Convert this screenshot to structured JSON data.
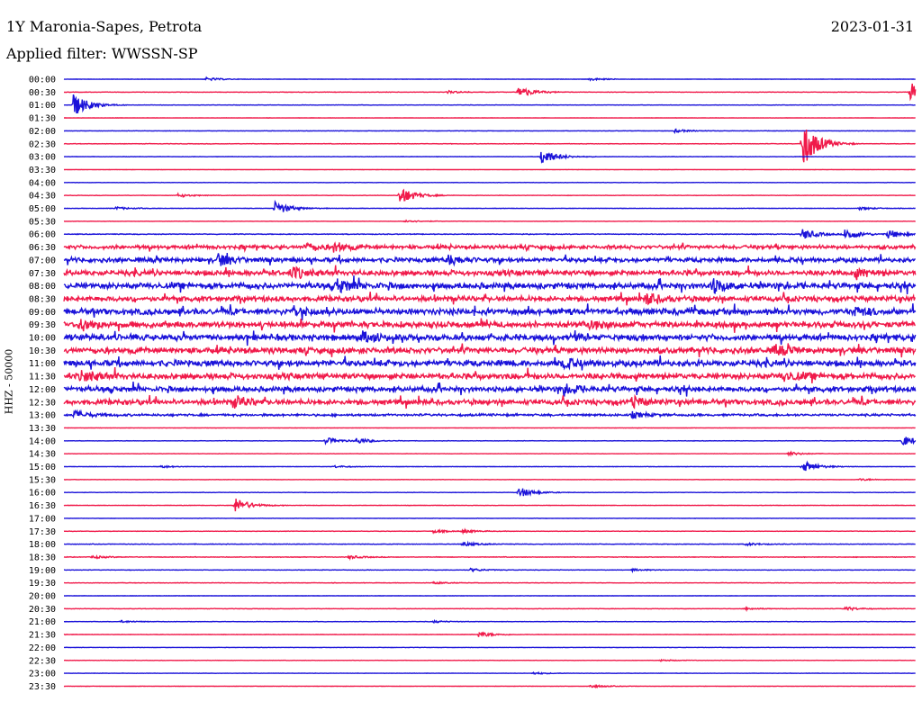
{
  "header": {
    "title": "1Y Maronia-Sapes, Petrota",
    "date": "2023-01-31",
    "filter": "Applied filter: WWSSN-SP"
  },
  "axis": {
    "ylabel": "HHZ - 50000"
  },
  "colors": {
    "even": "#1a12d9",
    "odd": "#f01a4a"
  },
  "chart_data": {
    "type": "line",
    "title": "1Y Maronia-Sapes, Petrota",
    "ylabel": "HHZ - 50000",
    "x_unit": "minutes after row start",
    "xlim": [
      0,
      30
    ],
    "rows": [
      {
        "time": "00:00",
        "activity": 0.04,
        "events": [
          {
            "t": 5.0,
            "amp": 0.6
          },
          {
            "t": 18.5,
            "amp": 0.5
          }
        ]
      },
      {
        "time": "00:30",
        "activity": 0.06,
        "events": [
          {
            "t": 16.0,
            "amp": 2.2
          },
          {
            "t": 13.5,
            "amp": 0.5
          },
          {
            "t": 29.8,
            "amp": 3.5
          }
        ]
      },
      {
        "time": "01:00",
        "activity": 0.05,
        "events": [
          {
            "t": 0.3,
            "amp": 4.5
          }
        ]
      },
      {
        "time": "01:30",
        "activity": 0.03,
        "events": []
      },
      {
        "time": "02:00",
        "activity": 0.05,
        "events": [
          {
            "t": 21.5,
            "amp": 0.6
          }
        ]
      },
      {
        "time": "02:30",
        "activity": 0.06,
        "events": [
          {
            "t": 26.0,
            "amp": 9.0
          }
        ]
      },
      {
        "time": "03:00",
        "activity": 0.05,
        "events": [
          {
            "t": 16.8,
            "amp": 3.0
          }
        ]
      },
      {
        "time": "03:30",
        "activity": 0.03,
        "events": []
      },
      {
        "time": "04:00",
        "activity": 0.04,
        "events": []
      },
      {
        "time": "04:30",
        "activity": 0.05,
        "events": [
          {
            "t": 4.0,
            "amp": 0.6
          },
          {
            "t": 11.8,
            "amp": 3.5
          }
        ]
      },
      {
        "time": "05:00",
        "activity": 0.06,
        "events": [
          {
            "t": 7.4,
            "amp": 2.6
          },
          {
            "t": 1.8,
            "amp": 0.5
          },
          {
            "t": 28.0,
            "amp": 0.5
          }
        ]
      },
      {
        "time": "05:30",
        "activity": 0.04,
        "events": [
          {
            "t": 12.0,
            "amp": 0.5
          }
        ]
      },
      {
        "time": "06:00",
        "activity": 0.1,
        "events": [
          {
            "t": 26.0,
            "amp": 2.0
          },
          {
            "t": 27.5,
            "amp": 2.2
          },
          {
            "t": 29.0,
            "amp": 1.6
          }
        ]
      },
      {
        "time": "06:30",
        "activity": 0.5,
        "events": [
          {
            "t": 8.5,
            "amp": 1.5
          },
          {
            "t": 9.5,
            "amp": 1.5
          }
        ]
      },
      {
        "time": "07:00",
        "activity": 0.6,
        "events": [
          {
            "t": 5.4,
            "amp": 2.2
          },
          {
            "t": 13.5,
            "amp": 1.8
          }
        ]
      },
      {
        "time": "07:30",
        "activity": 0.7,
        "events": [
          {
            "t": 8.0,
            "amp": 2.0
          },
          {
            "t": 27.8,
            "amp": 1.5
          }
        ]
      },
      {
        "time": "08:00",
        "activity": 0.8,
        "events": [
          {
            "t": 9.6,
            "amp": 2.5
          },
          {
            "t": 22.8,
            "amp": 2.5
          }
        ]
      },
      {
        "time": "08:30",
        "activity": 0.7,
        "events": [
          {
            "t": 20.5,
            "amp": 1.8
          }
        ]
      },
      {
        "time": "09:00",
        "activity": 0.8,
        "events": [
          {
            "t": 8.0,
            "amp": 2.0
          },
          {
            "t": 27.8,
            "amp": 1.6
          }
        ]
      },
      {
        "time": "09:30",
        "activity": 0.8,
        "events": [
          {
            "t": 0.5,
            "amp": 2.2
          },
          {
            "t": 18.5,
            "amp": 1.7
          }
        ]
      },
      {
        "time": "10:00",
        "activity": 0.8,
        "events": [
          {
            "t": 10.5,
            "amp": 1.6
          }
        ]
      },
      {
        "time": "10:30",
        "activity": 0.8,
        "events": [
          {
            "t": 25.0,
            "amp": 1.5
          }
        ]
      },
      {
        "time": "11:00",
        "activity": 0.8,
        "events": [
          {
            "t": 17.5,
            "amp": 1.6
          }
        ]
      },
      {
        "time": "11:30",
        "activity": 0.8,
        "events": [
          {
            "t": 0.6,
            "amp": 2.0
          },
          {
            "t": 25.3,
            "amp": 1.8
          }
        ]
      },
      {
        "time": "12:00",
        "activity": 0.7,
        "events": [
          {
            "t": 17.6,
            "amp": 1.7
          }
        ]
      },
      {
        "time": "12:30",
        "activity": 0.7,
        "events": [
          {
            "t": 6.0,
            "amp": 1.8
          },
          {
            "t": 20.0,
            "amp": 1.6
          }
        ]
      },
      {
        "time": "13:00",
        "activity": 0.3,
        "events": [
          {
            "t": 0.3,
            "amp": 1.6
          },
          {
            "t": 20.0,
            "amp": 1.0
          }
        ]
      },
      {
        "time": "13:30",
        "activity": 0.04,
        "events": []
      },
      {
        "time": "14:00",
        "activity": 0.05,
        "events": [
          {
            "t": 9.2,
            "amp": 1.2
          },
          {
            "t": 10.3,
            "amp": 1.0
          },
          {
            "t": 29.5,
            "amp": 2.0
          }
        ]
      },
      {
        "time": "14:30",
        "activity": 0.04,
        "events": [
          {
            "t": 25.5,
            "amp": 0.7
          }
        ]
      },
      {
        "time": "15:00",
        "activity": 0.05,
        "events": [
          {
            "t": 3.4,
            "amp": 0.4
          },
          {
            "t": 9.5,
            "amp": 0.4
          },
          {
            "t": 26.0,
            "amp": 2.0
          }
        ]
      },
      {
        "time": "15:30",
        "activity": 0.04,
        "events": [
          {
            "t": 28.0,
            "amp": 0.4
          }
        ]
      },
      {
        "time": "16:00",
        "activity": 0.05,
        "events": [
          {
            "t": 16.0,
            "amp": 2.0
          }
        ]
      },
      {
        "time": "16:30",
        "activity": 0.05,
        "events": [
          {
            "t": 6.0,
            "amp": 2.8
          }
        ]
      },
      {
        "time": "17:00",
        "activity": 0.04,
        "events": []
      },
      {
        "time": "17:30",
        "activity": 0.05,
        "events": [
          {
            "t": 13.0,
            "amp": 0.6
          },
          {
            "t": 14.0,
            "amp": 0.6
          }
        ]
      },
      {
        "time": "18:00",
        "activity": 0.08,
        "events": [
          {
            "t": 14.0,
            "amp": 0.8
          },
          {
            "t": 24.0,
            "amp": 0.5
          }
        ]
      },
      {
        "time": "18:30",
        "activity": 0.08,
        "events": [
          {
            "t": 1.0,
            "amp": 0.5
          },
          {
            "t": 10.0,
            "amp": 0.6
          }
        ]
      },
      {
        "time": "19:00",
        "activity": 0.06,
        "events": [
          {
            "t": 14.3,
            "amp": 0.6
          },
          {
            "t": 20.0,
            "amp": 0.4
          }
        ]
      },
      {
        "time": "19:30",
        "activity": 0.06,
        "events": [
          {
            "t": 13.0,
            "amp": 0.4
          }
        ]
      },
      {
        "time": "20:00",
        "activity": 0.04,
        "events": []
      },
      {
        "time": "20:30",
        "activity": 0.06,
        "events": [
          {
            "t": 27.5,
            "amp": 0.7
          },
          {
            "t": 24.0,
            "amp": 0.4
          }
        ]
      },
      {
        "time": "21:00",
        "activity": 0.05,
        "events": [
          {
            "t": 2.0,
            "amp": 0.4
          },
          {
            "t": 13.0,
            "amp": 0.4
          }
        ]
      },
      {
        "time": "21:30",
        "activity": 0.05,
        "events": [
          {
            "t": 14.6,
            "amp": 1.0
          }
        ]
      },
      {
        "time": "22:00",
        "activity": 0.04,
        "events": []
      },
      {
        "time": "22:30",
        "activity": 0.04,
        "events": [
          {
            "t": 21.0,
            "amp": 0.3
          }
        ]
      },
      {
        "time": "23:00",
        "activity": 0.04,
        "events": [
          {
            "t": 16.5,
            "amp": 0.4
          }
        ]
      },
      {
        "time": "23:30",
        "activity": 0.04,
        "events": [
          {
            "t": 18.5,
            "amp": 0.6
          }
        ]
      }
    ]
  }
}
